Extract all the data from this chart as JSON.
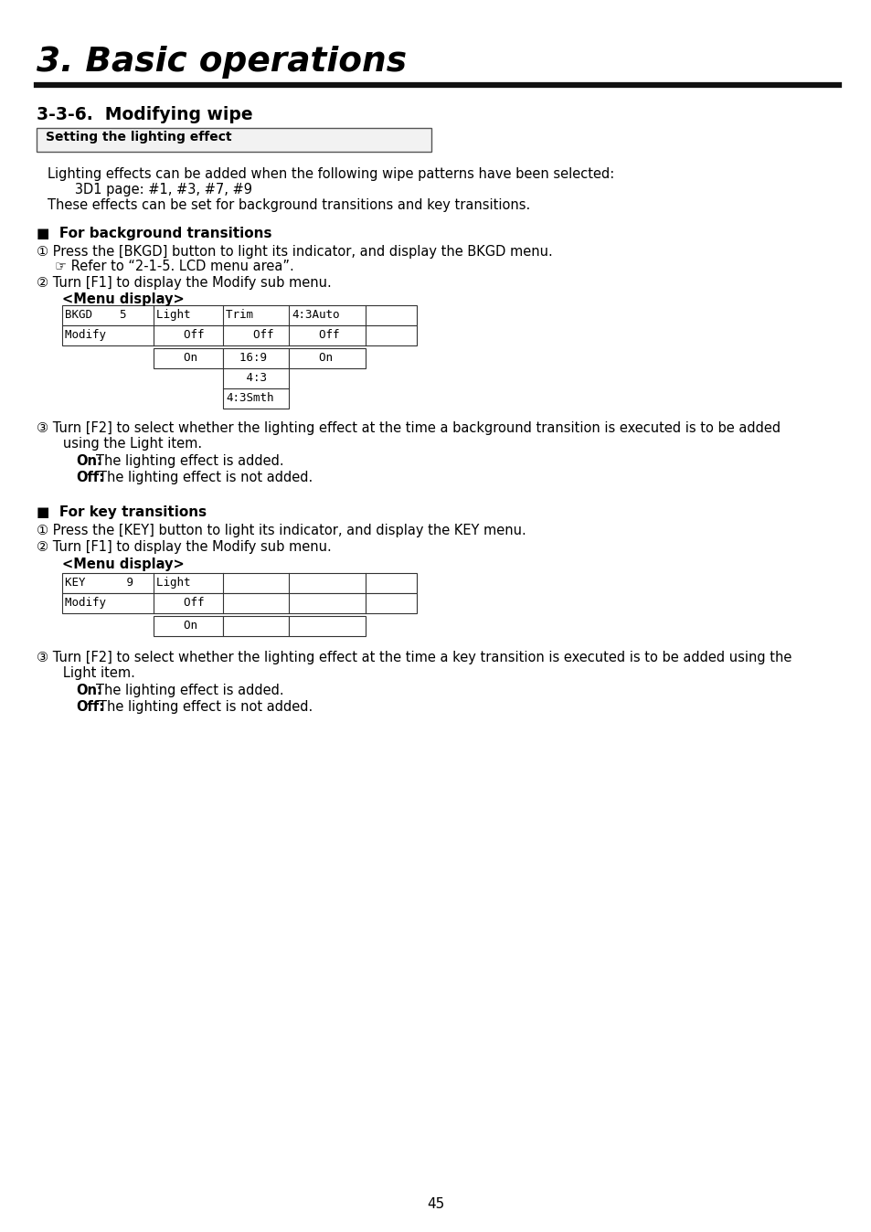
{
  "title": "3. Basic operations",
  "section": "3-3-6.  Modifying wipe",
  "box_label": "Setting the lighting effect",
  "bg_color": "#ffffff",
  "text_color": "#000000",
  "page_number": "45",
  "body_line1": "Lighting effects can be added when the following wipe patterns have been selected:",
  "body_line2": "   3D1 page: #1, #3, #7, #9",
  "body_line3": "These effects can be set for background transitions and key transitions.",
  "s2_header": "■  For background transitions",
  "s2_step1a": "① Press the [BKGD] button to light its indicator, and display the BKGD menu.",
  "s2_step1b": "☞ Refer to “2-1-5. LCD menu area”.",
  "s2_step2": "② Turn [F1] to display the Modify sub menu.",
  "s2_menu_label": "<Menu display>",
  "s2_step3a": "③ Turn [F2] to select whether the lighting effect at the time a background transition is executed is to be added",
  "s2_step3b": "   using the Light item.",
  "s3_header": "■  For key transitions",
  "s3_step1": "① Press the [KEY] button to light its indicator, and display the KEY menu.",
  "s3_step2": "② Turn [F1] to display the Modify sub menu.",
  "s3_menu_label": "<Menu display>",
  "s3_step3a": "③ Turn [F2] to select whether the lighting effect at the time a key transition is executed is to be added using the",
  "s3_step3b": "   Light item.",
  "on_text": "The lighting effect is added.",
  "off_text": "The lighting effect is not added."
}
